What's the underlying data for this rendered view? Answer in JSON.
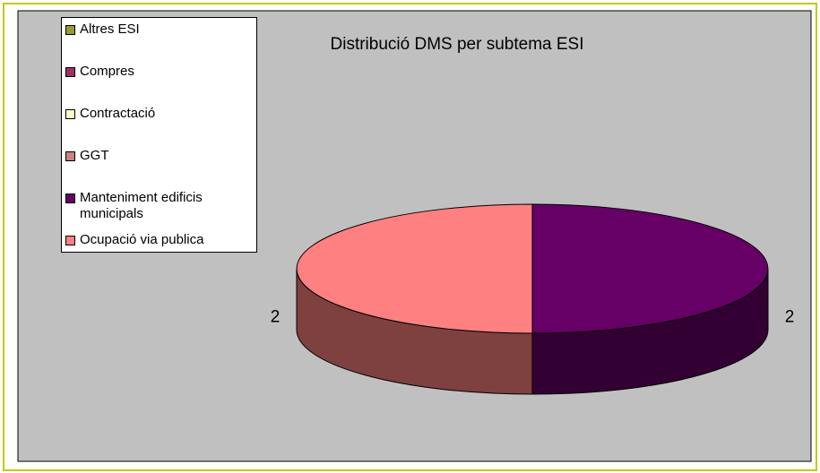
{
  "chart_data": {
    "type": "pie3d",
    "title": "Distribució DMS per subtema ESI",
    "categories": [
      "Altres ESI",
      "Compres",
      "Contractació",
      "GGT",
      "Manteniment edificis municipals",
      "Ocupació via publica"
    ],
    "values": [
      0,
      0,
      0,
      0,
      2,
      2
    ],
    "colors": [
      "#999933",
      "#993366",
      "#ffffcc",
      "#cc8080",
      "#660066",
      "#ff8080"
    ],
    "legend": "left"
  }
}
